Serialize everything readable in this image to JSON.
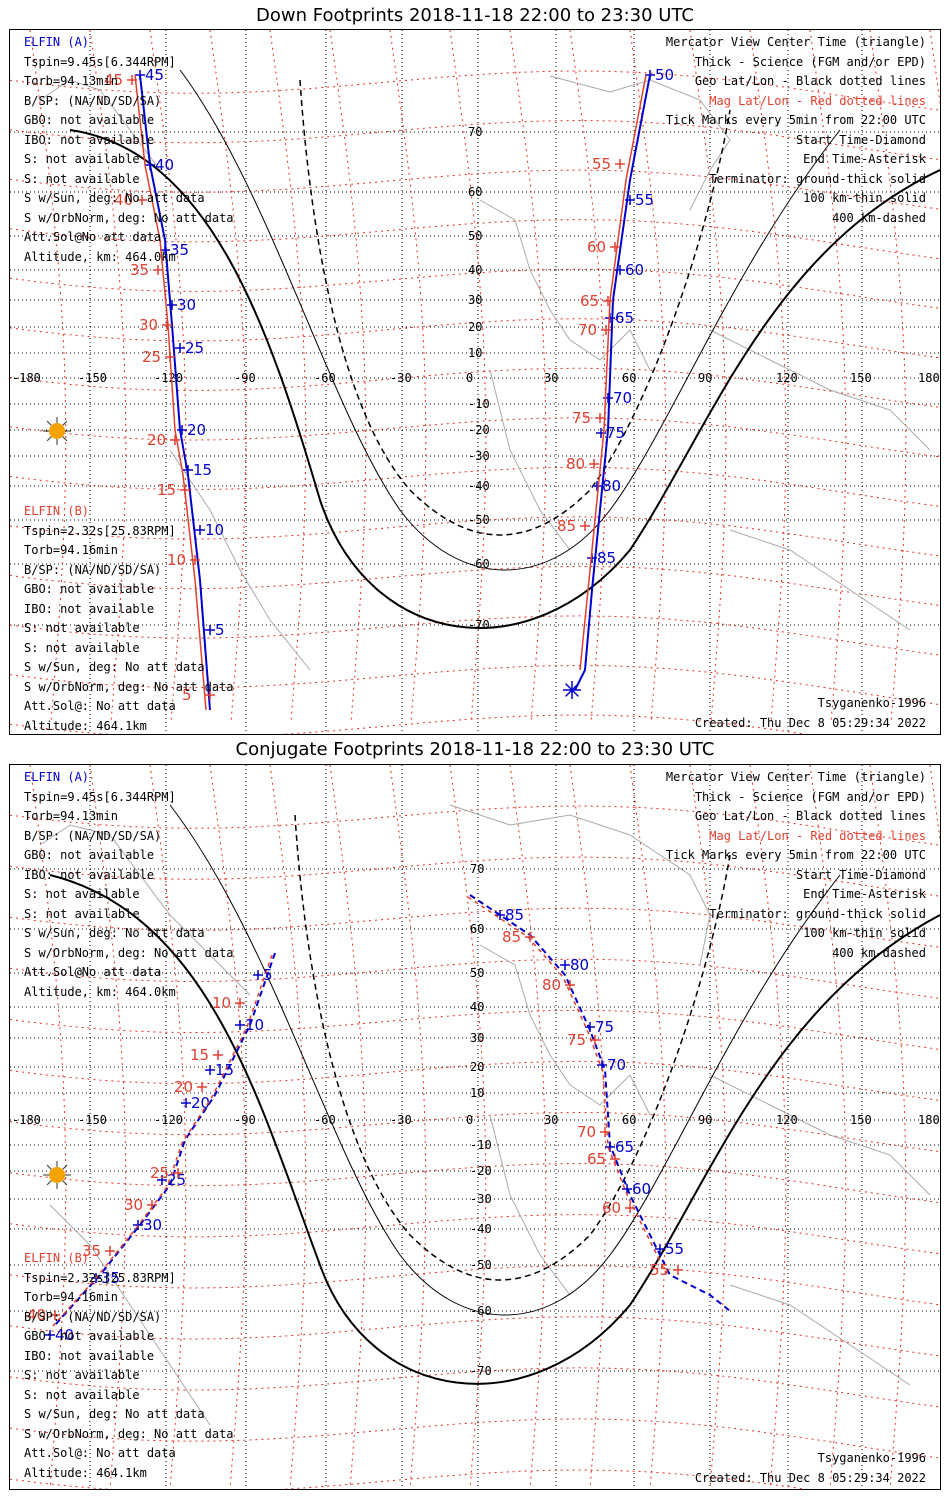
{
  "colors": {
    "elfin_a": "#0000cc",
    "elfin_b": "#e04030",
    "mag_grid": "#e03020",
    "geo_grid": "#000000",
    "coast": "#aaaaaa",
    "sun": "#f5a300"
  },
  "axis": {
    "lon_ticks": [
      "-180",
      "-150",
      "-120",
      "-90",
      "-60",
      "-30",
      "0",
      "30",
      "60",
      "90",
      "120",
      "150",
      "180"
    ],
    "lat_ticks": [
      "70",
      "60",
      "50",
      "40",
      "30",
      "20",
      "10",
      "-10",
      "-20",
      "-30",
      "-40",
      "-50",
      "-60",
      "-70"
    ]
  },
  "legend_right": [
    {
      "text": "Mercator View Center Time (triangle)",
      "color": "black"
    },
    {
      "text": "Thick - Science (FGM and/or EPD)",
      "color": "black"
    },
    {
      "text": "Geo Lat/Lon - Black dotted lines",
      "color": "black"
    },
    {
      "text": "Mag Lat/Lon - Red dotted lines",
      "color": "red"
    },
    {
      "text": "Tick Marks every 5min from 22:00 UTC",
      "color": "black"
    },
    {
      "text": "Start Time-Diamond",
      "color": "black"
    },
    {
      "text": "End Time-Asterisk",
      "color": "black"
    },
    {
      "text": "Terminator: ground-thick solid",
      "color": "black"
    },
    {
      "text": "100 km-thin solid",
      "color": "black"
    },
    {
      "text": "400 km-dashed",
      "color": "black"
    }
  ],
  "elfin_a_info": {
    "name": "ELFIN (A)",
    "lines": [
      "Tspin=9.45s[6.344RPM]",
      "Torb=94.13min",
      "B/SP: (NA/ND/SD/SA)",
      "GBO: not available",
      "IBO: not available",
      "S: not available",
      "S: not available",
      "S w/Sun, deg: No att data",
      "S w/OrbNorm, deg: No att data",
      "Att.Sol@No att data",
      "Altitude, km: 464.0km"
    ]
  },
  "elfin_b_info": {
    "name": "ELFIN (B)",
    "lines": [
      "Tspin=2.32s[25.83RPM]",
      "Torb=94.16min",
      "B/SP: (NA/ND/SD/SA)",
      "GBO: not available",
      "IBO: not available",
      "S: not available",
      "S: not available",
      "S w/Sun, deg: No att data",
      "S w/OrbNorm, deg: No att data",
      "Att.Sol@: No att data",
      "Altitude: 464.1km"
    ]
  },
  "footer": {
    "model": "Tsyganenko-1996",
    "created": "Created: Thu Dec  8 05:29:34 2022"
  },
  "panels": [
    {
      "title": "Down Footprints 2018-11-18 22:00 to 23:30 UTC",
      "tracks_a": [
        {
          "labels": [
            "45",
            "40",
            "35",
            "30",
            "25",
            "20",
            "15",
            "10",
            "5"
          ]
        },
        {
          "labels": [
            "50",
            "55",
            "60",
            "65",
            "70",
            "75",
            "80",
            "85"
          ]
        }
      ],
      "tracks_b": [
        {
          "labels": [
            "45",
            "40",
            "35",
            "30",
            "25",
            "20",
            "15",
            "10",
            "5"
          ]
        },
        {
          "labels": [
            "55",
            "60",
            "65",
            "70",
            "75",
            "80",
            "85"
          ]
        }
      ]
    },
    {
      "title": "Conjugate Footprints 2018-11-18 22:00 to 23:30 UTC",
      "tracks_a": [
        {
          "labels": [
            "5",
            "10",
            "15",
            "20",
            "25",
            "30",
            "35",
            "40"
          ]
        },
        {
          "labels": [
            "85",
            "80",
            "75",
            "70",
            "65",
            "60",
            "55"
          ]
        }
      ],
      "tracks_b": [
        {
          "labels": [
            "10",
            "15",
            "20",
            "25",
            "30",
            "35",
            "40"
          ]
        },
        {
          "labels": [
            "85",
            "80",
            "75",
            "70",
            "65",
            "60",
            "55"
          ]
        }
      ]
    }
  ]
}
